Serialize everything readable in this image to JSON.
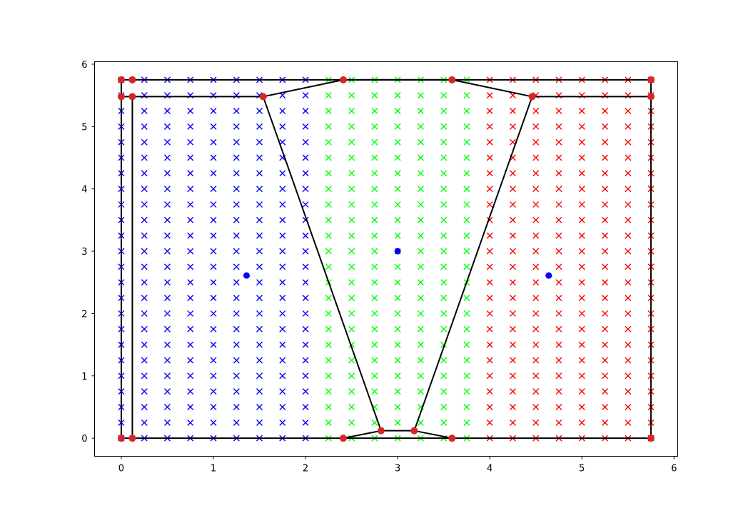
{
  "chart_data": {
    "type": "scatter",
    "title": "",
    "xlabel": "",
    "ylabel": "",
    "xlim": [
      -0.29,
      6.04
    ],
    "ylim": [
      -0.29,
      6.04
    ],
    "x_ticks": [
      "0",
      "1",
      "2",
      "3",
      "4",
      "5",
      "6"
    ],
    "y_ticks": [
      "0",
      "1",
      "2",
      "3",
      "4",
      "5",
      "6"
    ],
    "x_tick_values": [
      0,
      1,
      2,
      3,
      4,
      5,
      6
    ],
    "y_tick_values": [
      0,
      1,
      2,
      3,
      4,
      5,
      6
    ],
    "grid": false,
    "colors": {
      "blue": "#0000ff",
      "green": "#00ff00",
      "red": "#ff0000",
      "vertex": "#d62728",
      "edges": "#000000"
    },
    "sample_grid": {
      "marker": "x",
      "x_start": 0,
      "x_end": 5.75,
      "x_step": 0.25,
      "y_start": 0,
      "y_end": 5.75,
      "y_step": 0.25,
      "classification": "nearest_seed"
    },
    "seeds": [
      {
        "x": 1.36,
        "y": 2.61,
        "color": "#0000ff"
      },
      {
        "x": 3.0,
        "y": 3.0,
        "color": "#0000ff"
      },
      {
        "x": 4.64,
        "y": 2.61,
        "color": "#0000ff"
      }
    ],
    "region_seeds": [
      {
        "x": 1.36,
        "y": 2.61,
        "color": "#0000ff"
      },
      {
        "x": 3.0,
        "y": 2.61,
        "color": "#00ff00"
      },
      {
        "x": 4.64,
        "y": 2.61,
        "color": "#ff0000"
      }
    ],
    "polygons": [
      [
        [
          0,
          0
        ],
        [
          0,
          5.75
        ],
        [
          5.75,
          5.75
        ],
        [
          5.75,
          0
        ]
      ],
      [
        [
          0.12,
          0
        ],
        [
          0.12,
          5.48
        ],
        [
          1.54,
          5.48
        ],
        [
          2.41,
          5.75
        ],
        [
          3.59,
          5.75
        ],
        [
          4.46,
          5.48
        ],
        [
          5.75,
          5.48
        ]
      ],
      [
        [
          0,
          5.48
        ],
        [
          0.12,
          5.48
        ]
      ],
      [
        [
          1.54,
          5.48
        ],
        [
          2.82,
          0.12
        ],
        [
          3.18,
          0.12
        ],
        [
          4.46,
          5.48
        ]
      ],
      [
        [
          2.41,
          0
        ],
        [
          2.82,
          0.12
        ]
      ],
      [
        [
          3.18,
          0.12
        ],
        [
          3.59,
          0
        ]
      ]
    ],
    "vertices": [
      [
        0,
        0
      ],
      [
        0.12,
        0
      ],
      [
        2.41,
        0
      ],
      [
        3.59,
        0
      ],
      [
        5.75,
        0
      ],
      [
        0,
        5.48
      ],
      [
        0.12,
        5.48
      ],
      [
        1.54,
        5.48
      ],
      [
        4.46,
        5.48
      ],
      [
        5.75,
        5.48
      ],
      [
        0,
        5.75
      ],
      [
        0.12,
        5.75
      ],
      [
        2.41,
        5.75
      ],
      [
        3.59,
        5.75
      ],
      [
        5.75,
        5.75
      ],
      [
        2.82,
        0.12
      ],
      [
        3.18,
        0.12
      ]
    ]
  }
}
